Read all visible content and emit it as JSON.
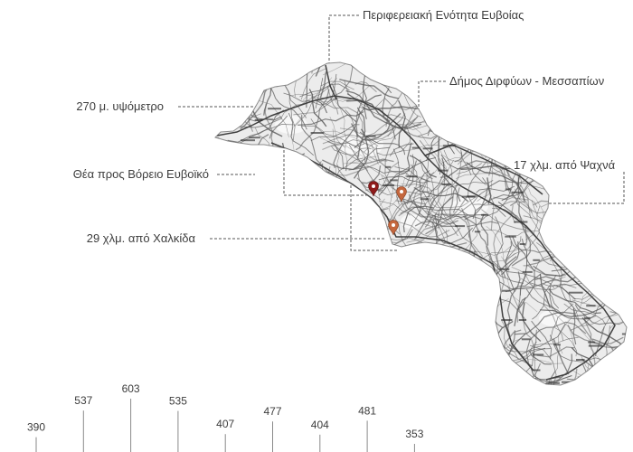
{
  "annotations": {
    "regional_unit": "Περιφερειακή Ενότητα Ευβοίας",
    "municipality": "Δήμος Διρφύων - Μεσσαπίων",
    "altitude": "270 μ. υψόμετρο",
    "view": "Θέα προς Βόρειο Ευβοϊκό",
    "distance_psachna": "17 χλμ. από Ψαχνά",
    "distance_chalkida": "29 χλμ. από Χαλκίδα"
  },
  "map": {
    "land_color": "#ececec",
    "coast_color": "#8c8c8c",
    "road_color": "#5e5e5e",
    "highway_color": "#3f3f3f",
    "markers": [
      {
        "icon": "map-pin-icon",
        "color": "#8e1b1b"
      },
      {
        "icon": "map-pin-icon",
        "color": "#c4673e"
      },
      {
        "icon": "map-pin-icon",
        "color": "#c4673e"
      }
    ]
  },
  "elevation_profile": {
    "values": [
      390,
      537,
      603,
      535,
      407,
      477,
      404,
      481,
      353
    ]
  },
  "colors": {
    "text": "#3d3d3d",
    "leader_line": "#555555",
    "tick_line": "#8a8a8a"
  }
}
